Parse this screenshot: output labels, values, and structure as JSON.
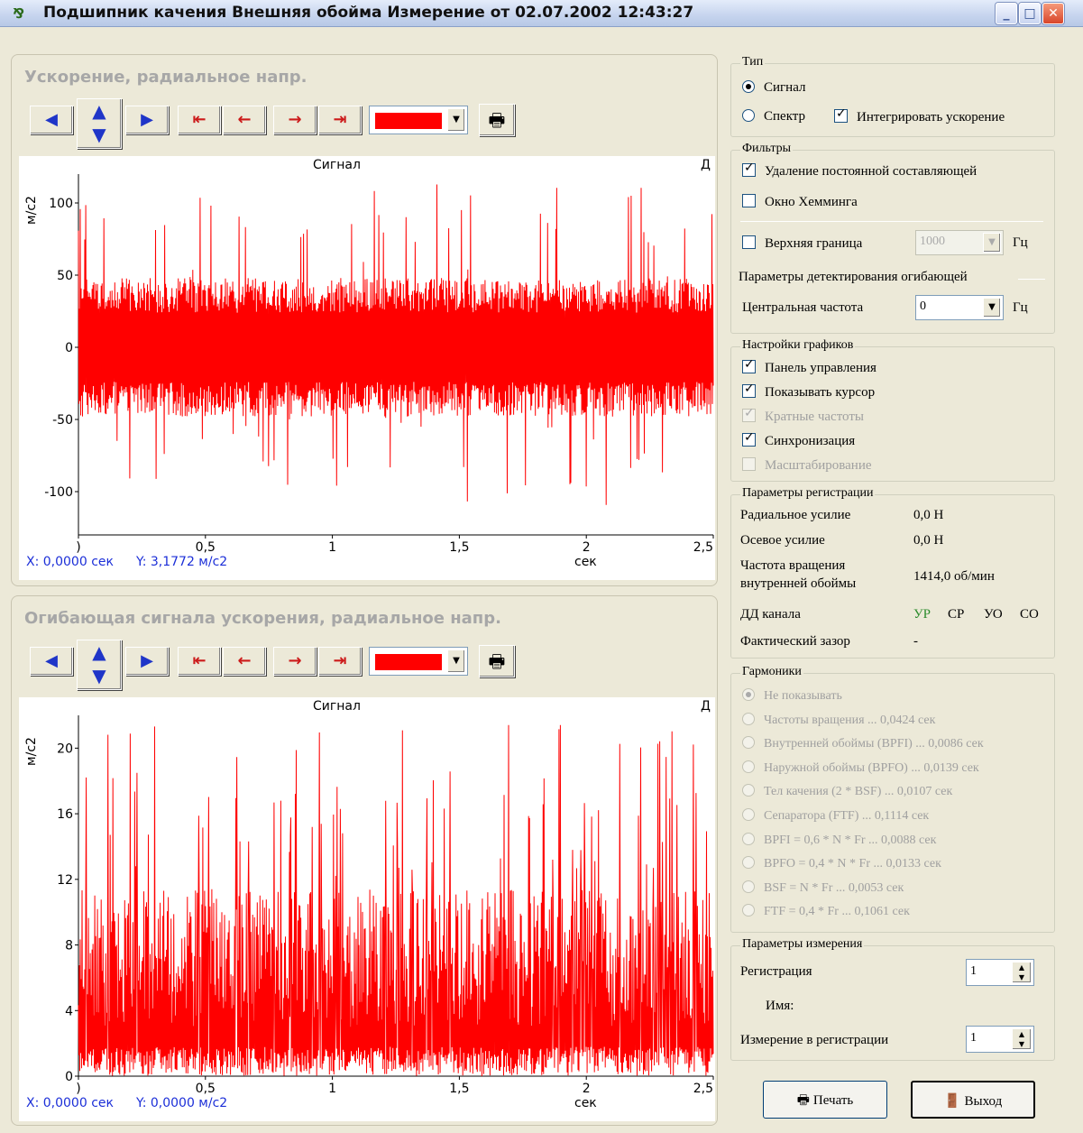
{
  "window": {
    "title": "Подшипник качения Внешняя обойма  Измерение от 02.07.2002 12:43:27",
    "buttons": {
      "minimize": "_",
      "maximize": "□",
      "close": "✕"
    }
  },
  "panels": [
    {
      "title": "Ускорение, радиальное напр.",
      "chart_header": "Сигнал",
      "chart_right_label": "Д",
      "y_unit": "м/с2",
      "y_ticks": [
        "100",
        "50",
        "0",
        "-50",
        "-100"
      ],
      "x_ticks": [
        ")",
        "0,5",
        "1",
        "1,5",
        "2",
        "2,5"
      ],
      "x_unit": "сек",
      "readout_x": "X: 0,0000 сек",
      "readout_y": "Y: 3,1772 м/с2"
    },
    {
      "title": "Огибающая сигнала ускорения, радиальное напр.",
      "chart_header": "Сигнал",
      "chart_right_label": "Д",
      "y_unit": "м/с2",
      "y_ticks": [
        "20",
        "16",
        "12",
        "8",
        "4",
        "0"
      ],
      "x_ticks": [
        ")",
        "0,5",
        "1",
        "1,5",
        "2",
        "2,5"
      ],
      "x_unit": "сек",
      "readout_x": "X: 0,0000 сек",
      "readout_y": "Y: 0,0000 м/с2"
    }
  ],
  "chart_data": [
    {
      "type": "line",
      "title": "Сигнал",
      "xlabel": "сек",
      "ylabel": "м/с2",
      "xlim": [
        0,
        2.5
      ],
      "ylim": [
        -130,
        120
      ],
      "series": [
        {
          "color": "#ff0000",
          "min_est": -125,
          "max_est": 115,
          "typical_band": [
            -40,
            40
          ]
        }
      ]
    },
    {
      "type": "line",
      "title": "Сигнал",
      "xlabel": "сек",
      "ylabel": "м/с2",
      "xlim": [
        0,
        2.5
      ],
      "ylim": [
        0,
        22
      ],
      "series": [
        {
          "color": "#ff0000",
          "min_est": 0,
          "max_est": 21.5,
          "typical_band": [
            0,
            12
          ]
        }
      ]
    }
  ],
  "right": {
    "type_group": {
      "legend": "Тип",
      "signal": "Сигнал",
      "spectrum": "Спектр",
      "integrate": "Интегрировать ускорение"
    },
    "filters": {
      "legend": "Фильтры",
      "dc_removal": "Удаление постоянной составляющей",
      "hamming": "Окно Хемминга",
      "upper_limit": "Верхняя граница",
      "upper_value": "1000",
      "hz1": "Гц",
      "envelope_params": "Параметры детектирования огибающей",
      "center_freq": "Центральная частота",
      "center_value": "0",
      "hz2": "Гц"
    },
    "graph_settings": {
      "legend": "Настройки графиков",
      "items": [
        {
          "label": "Панель управления",
          "checked": true,
          "disabled": false
        },
        {
          "label": "Показывать курсор",
          "checked": true,
          "disabled": false
        },
        {
          "label": "Кратные частоты",
          "checked": true,
          "disabled": true
        },
        {
          "label": "Синхронизация",
          "checked": true,
          "disabled": false
        },
        {
          "label": "Масштабирование",
          "checked": false,
          "disabled": true
        }
      ]
    },
    "registration": {
      "legend": "Параметры регистрации",
      "radial_label": "Радиальное усилие",
      "radial_value": "0,0 Н",
      "axial_label": "Осевое усилие",
      "axial_value": "0,0 Н",
      "rot_label_1": "Частота вращения",
      "rot_label_2": "внутренней обоймы",
      "rot_value": "1414,0 об/мин",
      "dd_label": "ДД канала",
      "dd_ur": "УР",
      "dd_sr": "СР",
      "dd_uo": "УО",
      "dd_so": "СО",
      "gap_label": "Фактический зазор",
      "gap_value": "-"
    },
    "harmonics": {
      "legend": "Гармоники",
      "items": [
        "Не показывать",
        "Частоты вращения ... 0,0424 сек",
        "Внутренней обоймы (BPFI) ... 0,0086 сек",
        "Наружной обоймы (BPFO) ... 0,0139 сек",
        "Тел качения (2 * BSF) ... 0,0107 сек",
        "Сепаратора (FTF) ... 0,1114 сек",
        "BPFI = 0,6 * N * Fr ... 0,0088 сек",
        "BPFO = 0,4 * N * Fr ... 0,0133 сек",
        "BSF = N * Fr ... 0,0053 сек",
        "FTF = 0,4 * Fr ... 0,1061 сек"
      ]
    },
    "measurement": {
      "legend": "Параметры измерения",
      "registration_label": "Регистрация",
      "registration_value": "1",
      "name_label": "Имя:",
      "meas_label": "Измерение в регистрации",
      "meas_value": "1"
    },
    "print_button": "Печать",
    "exit_button": "Выход"
  }
}
